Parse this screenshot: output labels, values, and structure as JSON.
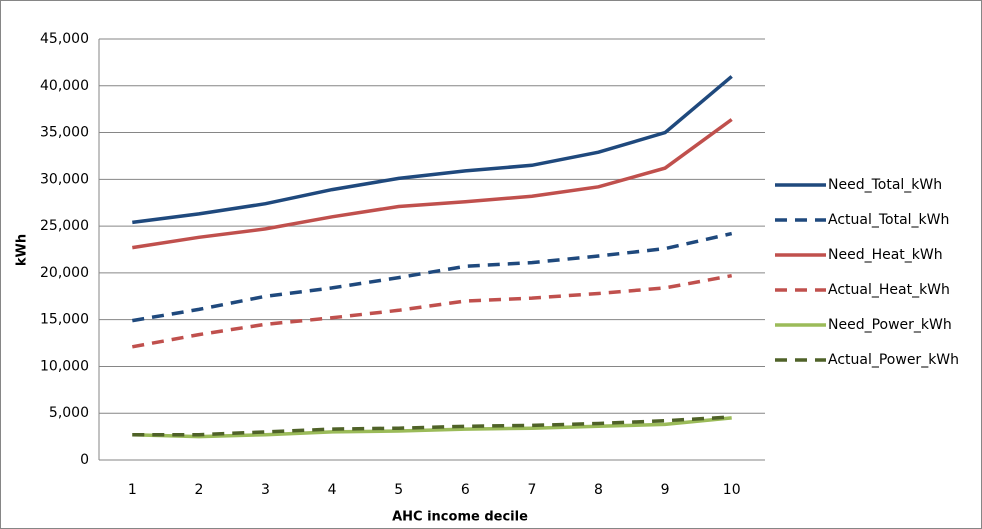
{
  "chart_data": {
    "type": "line",
    "x_label": "AHC income decile",
    "y_label": "kWh",
    "categories": [
      "1",
      "2",
      "3",
      "4",
      "5",
      "6",
      "7",
      "8",
      "9",
      "10"
    ],
    "series": [
      {
        "name": "Need_Total_kWh",
        "color": "#1f497d",
        "dashed": false,
        "values": [
          25400,
          26300,
          27400,
          28900,
          30100,
          30900,
          31500,
          32900,
          35000,
          41000
        ]
      },
      {
        "name": "Actual_Total_kWh",
        "color": "#1f497d",
        "dashed": true,
        "values": [
          14900,
          16100,
          17500,
          18400,
          19500,
          20700,
          21100,
          21800,
          22600,
          24200
        ]
      },
      {
        "name": "Need_Heat_kWh",
        "color": "#c0504d",
        "dashed": false,
        "values": [
          22700,
          23800,
          24700,
          26000,
          27100,
          27600,
          28200,
          29200,
          31200,
          36400
        ]
      },
      {
        "name": "Actual_Heat_kWh",
        "color": "#c0504d",
        "dashed": true,
        "values": [
          12100,
          13400,
          14500,
          15200,
          16000,
          17000,
          17300,
          17800,
          18400,
          19700
        ]
      },
      {
        "name": "Need_Power_kWh",
        "color": "#9bbb59",
        "dashed": false,
        "values": [
          2700,
          2500,
          2700,
          3000,
          3100,
          3300,
          3400,
          3600,
          3800,
          4500
        ]
      },
      {
        "name": "Actual_Power_kWh",
        "color": "#4f6228",
        "dashed": true,
        "values": [
          2700,
          2700,
          3000,
          3300,
          3400,
          3600,
          3700,
          3900,
          4200,
          4600
        ]
      }
    ],
    "ylim": [
      0,
      45000
    ],
    "yticks": [
      0,
      {
        "value": 5000,
        "label": "5,000"
      },
      {
        "value": 10000,
        "label": "10,000"
      },
      {
        "value": 15000,
        "label": "15,000"
      },
      {
        "value": 20000,
        "label": "20,000"
      },
      {
        "value": 25000,
        "label": "25,000"
      },
      {
        "value": 30000,
        "label": "30,000"
      },
      {
        "value": 35000,
        "label": "35,000"
      },
      {
        "value": 40000,
        "label": "40,000"
      },
      {
        "value": 45000,
        "label": "45,000"
      }
    ],
    "grid": true,
    "legend": "right"
  }
}
